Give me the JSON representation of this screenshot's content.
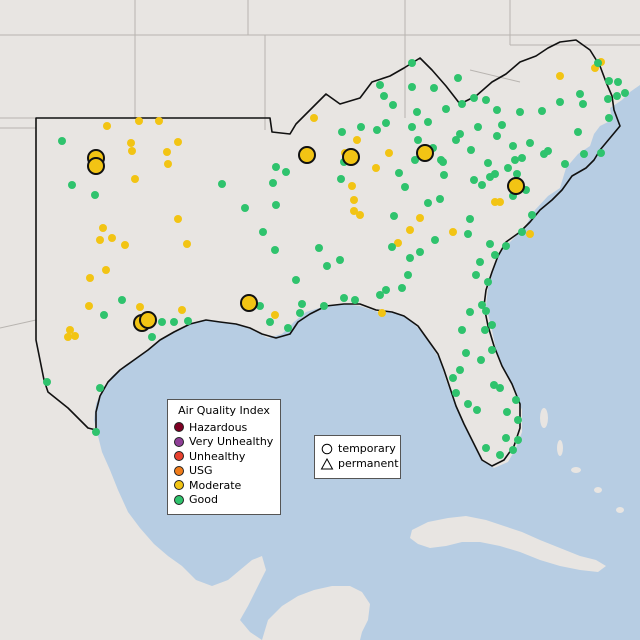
{
  "legend": {
    "title": "Air Quality Index",
    "categories": [
      {
        "label": "Hazardous",
        "color": "#7e0023"
      },
      {
        "label": "Very Unhealthy",
        "color": "#8f3f97"
      },
      {
        "label": "Unhealthy",
        "color": "#e8412f"
      },
      {
        "label": "USG",
        "color": "#f07c1a"
      },
      {
        "label": "Moderate",
        "color": "#f2c414"
      },
      {
        "label": "Good",
        "color": "#2fc36d"
      }
    ]
  },
  "monitor_types": [
    {
      "label": "temporary",
      "icon": "circle-icon"
    },
    {
      "label": "permanent",
      "icon": "triangle-icon"
    }
  ],
  "colors": {
    "water": "#b7cde3",
    "land": "#e8e5e2",
    "state_border": "#b8b4b0",
    "region_outline": "#111111",
    "moderate": "#f2c414",
    "good": "#2fc36d"
  }
}
